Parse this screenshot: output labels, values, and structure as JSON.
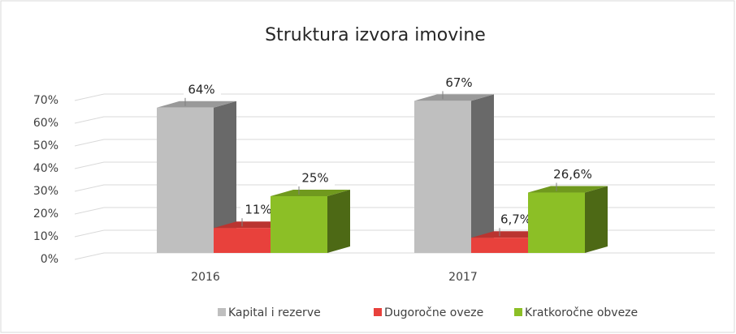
{
  "chart_data": {
    "type": "bar3d",
    "title": "Struktura izvora imovine",
    "categories": [
      "2016",
      "2017"
    ],
    "series": [
      {
        "name": "Kapital i rezerve",
        "color": "#bfbfbf",
        "values": [
          64,
          67
        ],
        "value_labels": [
          "64%",
          "67%"
        ]
      },
      {
        "name": "Dugoročne oveze",
        "color": "#e8413c",
        "values": [
          11,
          6.7
        ],
        "value_labels": [
          "11%",
          "6,7%"
        ]
      },
      {
        "name": "Kratkoročne obveze",
        "color": "#8cbf26",
        "values": [
          25,
          26.6
        ],
        "value_labels": [
          "25%",
          "26,6%"
        ]
      }
    ],
    "ylim": [
      0,
      70
    ],
    "yticks": [
      {
        "value": 0,
        "label": "0%"
      },
      {
        "value": 10,
        "label": "10%"
      },
      {
        "value": 20,
        "label": "20%"
      },
      {
        "value": 30,
        "label": "30%"
      },
      {
        "value": 40,
        "label": "40%"
      },
      {
        "value": 50,
        "label": "50%"
      },
      {
        "value": 60,
        "label": "60%"
      },
      {
        "value": 70,
        "label": "70%"
      }
    ],
    "grid": true,
    "legend": "bottom"
  }
}
